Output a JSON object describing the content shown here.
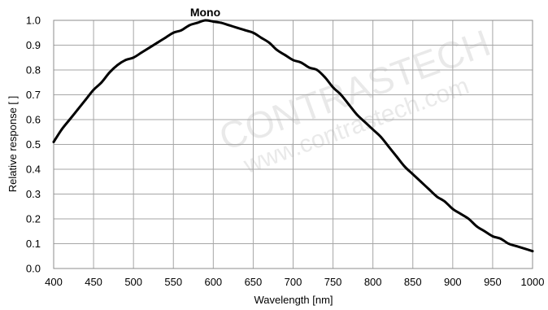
{
  "chart_data": {
    "type": "line",
    "title": "",
    "xlabel": "Wavelength [nm]",
    "ylabel": "Relative response [ ]",
    "xlim": [
      400,
      1000
    ],
    "ylim": [
      0.0,
      1.0
    ],
    "grid": true,
    "x_ticks": [
      "400",
      "450",
      "500",
      "550",
      "600",
      "650",
      "700",
      "750",
      "800",
      "850",
      "900",
      "950",
      "1000"
    ],
    "y_ticks": [
      "0.0",
      "0.1",
      "0.2",
      "0.3",
      "0.4",
      "0.5",
      "0.6",
      "0.7",
      "0.8",
      "0.9",
      "1.0"
    ],
    "series": [
      {
        "name": "Mono",
        "color": "#000000",
        "x": [
          400,
          410,
          420,
          430,
          440,
          450,
          460,
          470,
          480,
          490,
          500,
          510,
          520,
          530,
          540,
          550,
          560,
          570,
          580,
          590,
          600,
          610,
          620,
          630,
          640,
          650,
          660,
          670,
          680,
          690,
          700,
          710,
          720,
          730,
          740,
          750,
          760,
          770,
          780,
          790,
          800,
          810,
          820,
          830,
          840,
          850,
          860,
          870,
          880,
          890,
          900,
          910,
          920,
          930,
          940,
          950,
          960,
          970,
          980,
          990,
          1000
        ],
        "y": [
          0.51,
          0.56,
          0.6,
          0.64,
          0.68,
          0.72,
          0.75,
          0.79,
          0.82,
          0.84,
          0.85,
          0.87,
          0.89,
          0.91,
          0.93,
          0.95,
          0.96,
          0.98,
          0.99,
          1.0,
          0.995,
          0.99,
          0.98,
          0.97,
          0.96,
          0.95,
          0.93,
          0.91,
          0.88,
          0.86,
          0.84,
          0.83,
          0.81,
          0.8,
          0.77,
          0.73,
          0.7,
          0.66,
          0.62,
          0.59,
          0.56,
          0.53,
          0.49,
          0.45,
          0.41,
          0.38,
          0.35,
          0.32,
          0.29,
          0.27,
          0.24,
          0.22,
          0.2,
          0.17,
          0.15,
          0.13,
          0.12,
          0.1,
          0.09,
          0.08,
          0.07
        ]
      }
    ]
  },
  "watermark": {
    "brand": "CONTRASTECH",
    "url": "www.contrastech.com"
  }
}
